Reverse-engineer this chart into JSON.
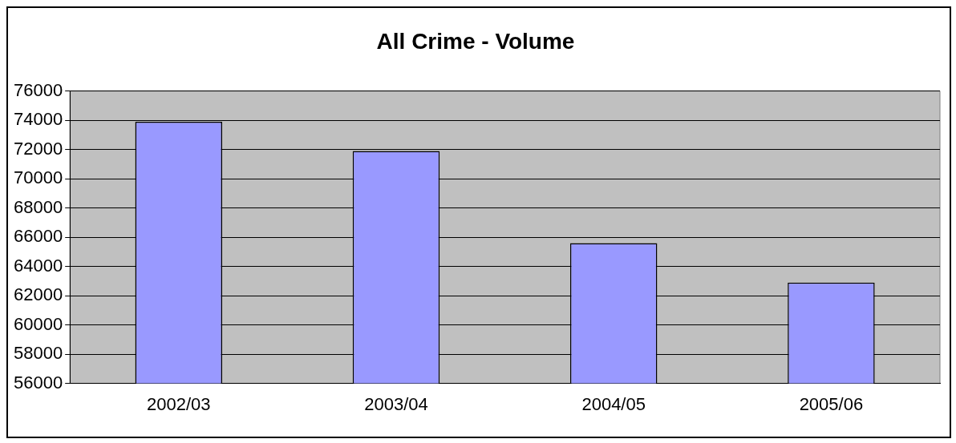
{
  "chart_data": {
    "type": "bar",
    "title": "All Crime - Volume",
    "categories": [
      "2002/03",
      "2003/04",
      "2004/05",
      "2005/06"
    ],
    "values": [
      73900,
      71900,
      65600,
      62900
    ],
    "color": "#9999ff",
    "ylim": [
      56000,
      76000
    ],
    "yticks": [
      56000,
      58000,
      60000,
      62000,
      64000,
      66000,
      68000,
      70000,
      72000,
      74000,
      76000
    ],
    "grid": "y"
  }
}
